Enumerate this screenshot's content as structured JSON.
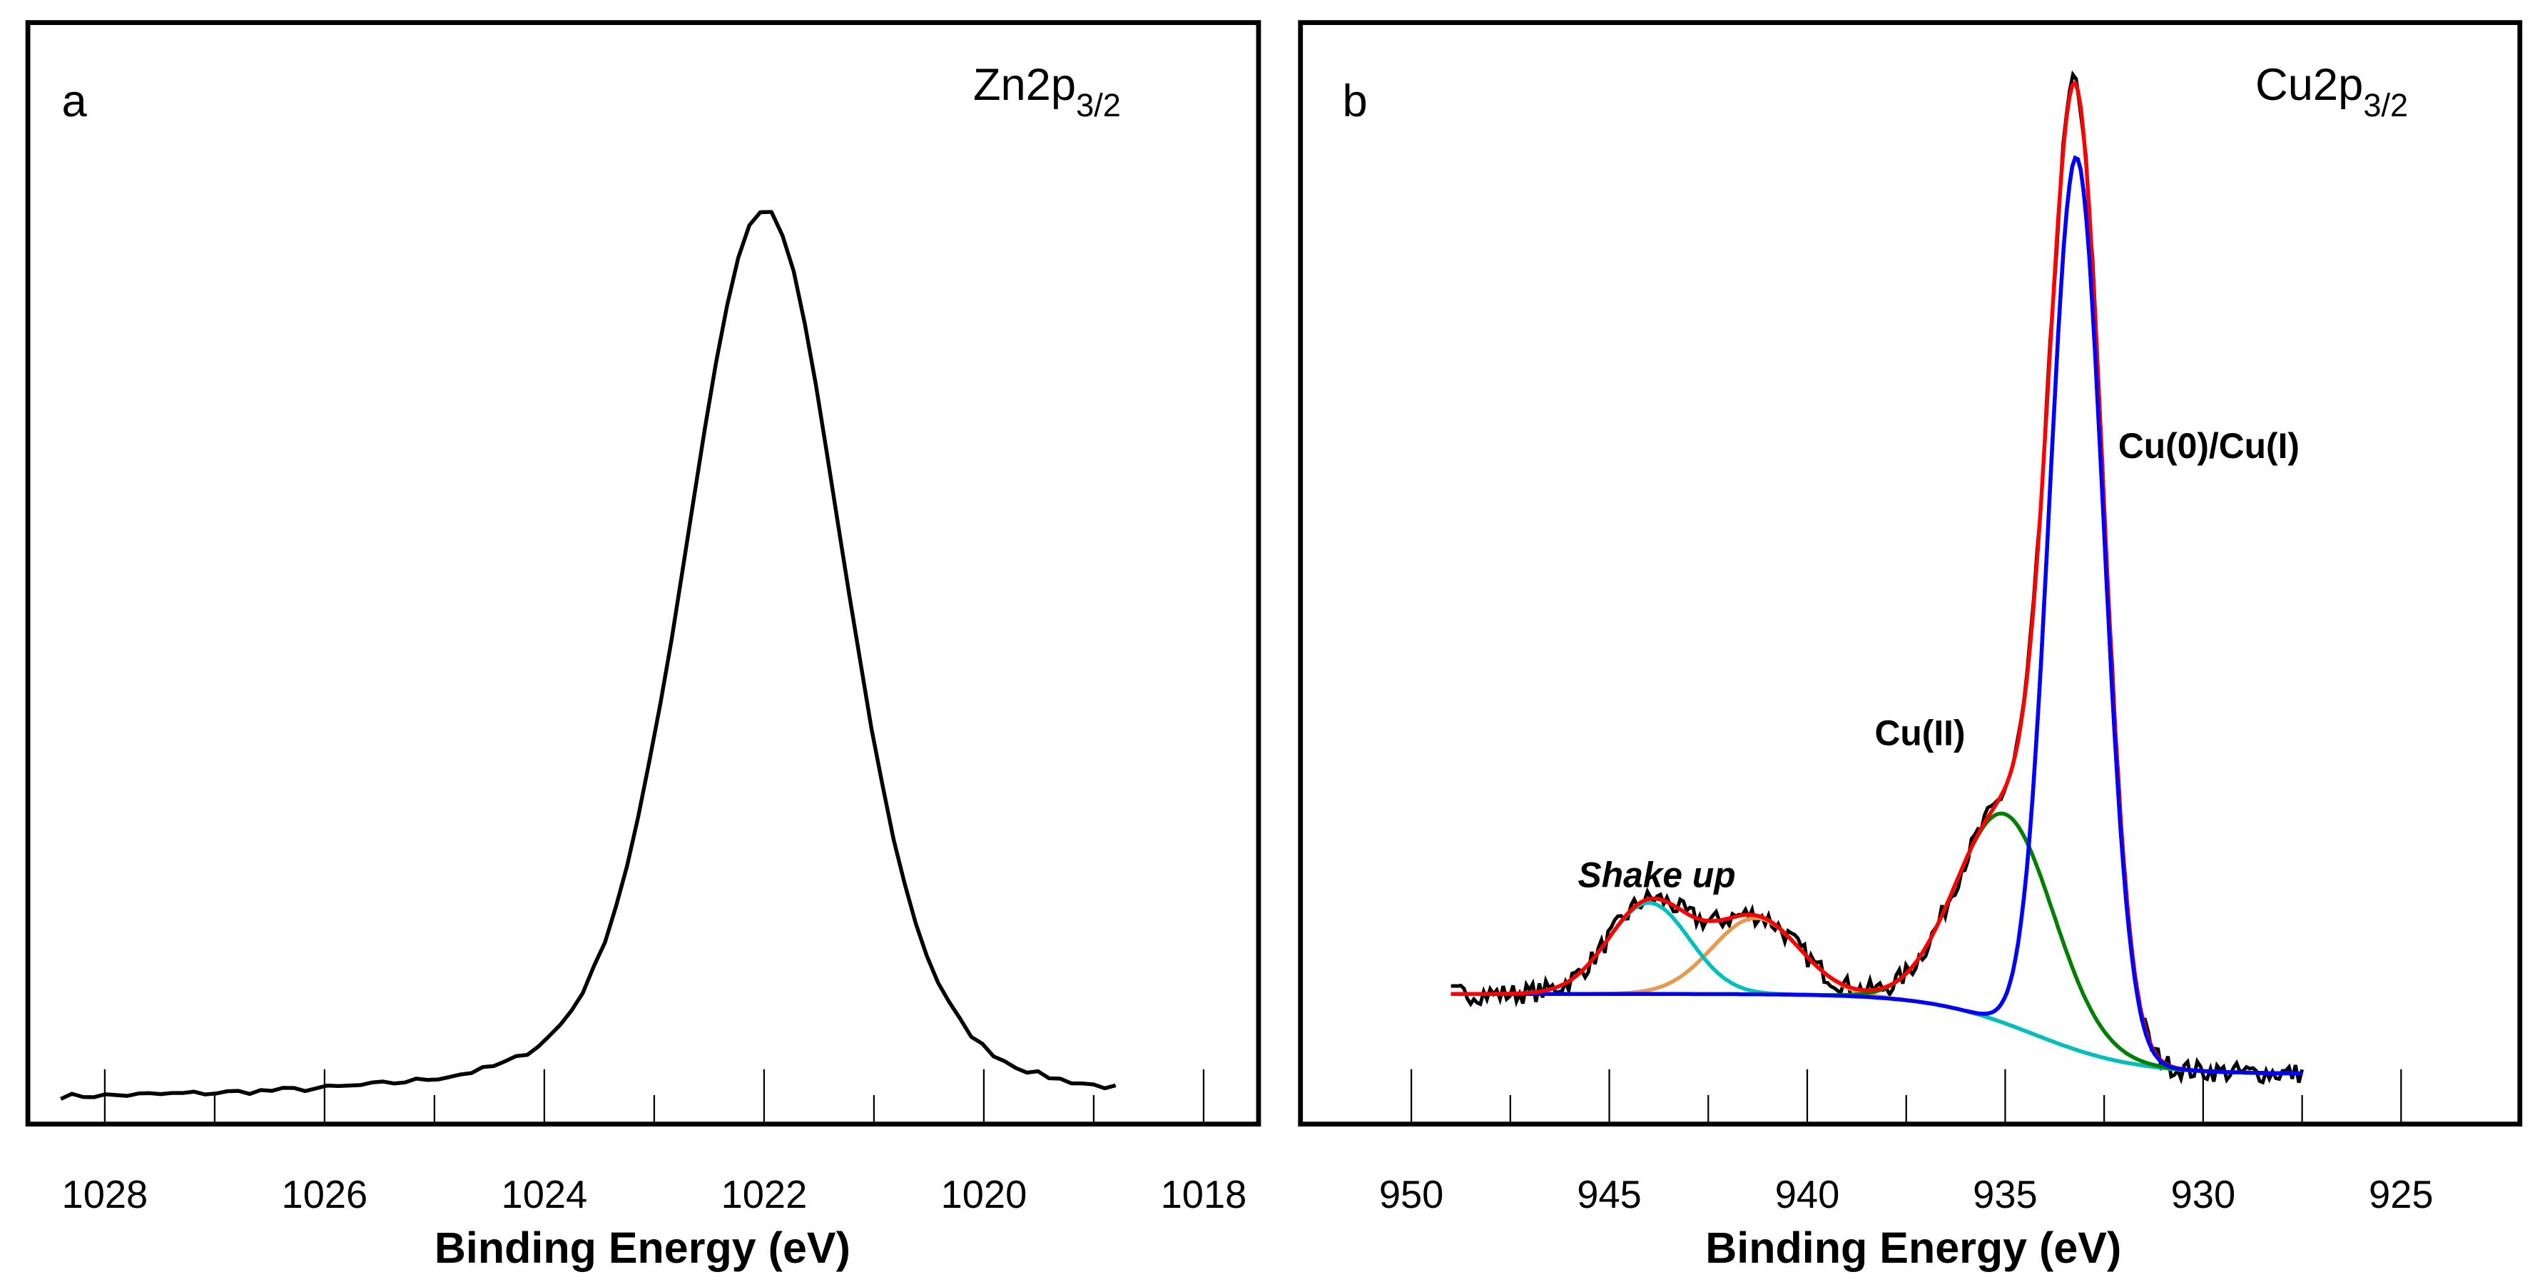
{
  "chart_data": [
    {
      "type": "line",
      "panel_label": "a",
      "title_main": "Zn2p",
      "title_sub": "3/2",
      "xlabel": "Binding Energy (eV)",
      "ylabel": "",
      "xlim": [
        1028.7,
        1017.5
      ],
      "x_reversed": true,
      "ylim": [
        0,
        120
      ],
      "xticks": [
        1028,
        1026,
        1024,
        1022,
        1020,
        1018
      ],
      "xtick_labels": [
        "1028",
        "1026",
        "1024",
        "1022",
        "1020",
        "1018"
      ],
      "data_range": [
        1028.4,
        1018.8
      ],
      "series": [
        {
          "name": "Zn2p3/2 spectrum",
          "color": "#000000",
          "center": 1022.0,
          "height": 100.5,
          "fwhm": 1.7,
          "lorentz_fraction": 0.3,
          "background_high_be": 2.5,
          "background_low_be": 1.7
        }
      ]
    },
    {
      "type": "line",
      "panel_label": "b",
      "title_main": "Cu2p",
      "title_sub": "3/2",
      "xlabel": "Binding Energy (eV)",
      "ylabel": "",
      "xlim": [
        952.8,
        922.0
      ],
      "x_reversed": true,
      "ylim": [
        -5,
        110
      ],
      "xticks": [
        950,
        945,
        940,
        935,
        930,
        925
      ],
      "xtick_labels": [
        "950",
        "945",
        "940",
        "935",
        "930",
        "925"
      ],
      "data_range": [
        949.0,
        927.5
      ],
      "background": {
        "high_be": 9.0,
        "low_be": 0.4,
        "step_center": 934.3,
        "step_width": 1.3
      },
      "series": [
        {
          "name": "Raw data",
          "color": "#000000"
        },
        {
          "name": "Envelope",
          "color": "#ff0000"
        },
        {
          "name": "Cu(0)/Cu(I)",
          "color": "#0000ff",
          "center": 933.2,
          "height": 96,
          "fwhm": 1.6
        },
        {
          "name": "Cu(II)",
          "color": "#008000",
          "center": 935.0,
          "height": 22.5,
          "fwhm": 2.9
        },
        {
          "name": "Shake up 1",
          "color": "#00bfbf",
          "center": 944.0,
          "height": 9.8,
          "fwhm": 2.4
        },
        {
          "name": "Shake up 2",
          "color": "#e69a50",
          "center": 941.3,
          "height": 8.2,
          "fwhm": 2.6
        }
      ],
      "annotations": [
        "Cu(0)/Cu(I)",
        "Cu(II)",
        "Shake up"
      ]
    }
  ]
}
